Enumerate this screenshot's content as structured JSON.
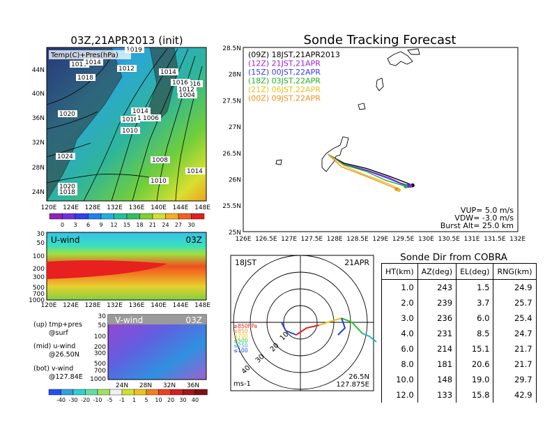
{
  "left": {
    "title": "03Z,21APR2013 (init)",
    "map_label": "Temp(C)+Pres(hPa)",
    "map_lat_labels": [
      "44N",
      "40N",
      "36N",
      "32N",
      "28N",
      "24N"
    ],
    "map_lon_labels": [
      "120E",
      "124E",
      "128E",
      "132E",
      "136E",
      "140E",
      "144E",
      "148E"
    ],
    "isobar_labels": [
      "1016",
      "1014",
      "1012",
      "1014",
      "1016",
      "1012",
      "1004",
      "1018",
      "1016",
      "1020",
      "1014",
      "1008",
      "1016",
      "1010",
      "1006",
      "1008",
      "1014",
      "1024",
      "1010",
      "1020",
      "1018",
      "1019"
    ],
    "temp_colorbar": [
      "0",
      "3",
      "6",
      "9",
      "12",
      "15",
      "18",
      "21",
      "24",
      "27",
      "30"
    ],
    "uwind_label": "U-wind",
    "uwind_time": "03Z",
    "vwind_label": "V-wind",
    "vwind_time": "03Z",
    "pressure_ticks": [
      "30",
      "50",
      "100",
      "200",
      "300",
      "500",
      "700",
      "1000"
    ],
    "vwind_pressure_ticks": [
      "30",
      "50",
      "100",
      "200",
      "300",
      "500",
      "700",
      "1000"
    ],
    "uwind_lon_labels": [
      "120E",
      "124E",
      "128E",
      "132E",
      "136E",
      "140E",
      "144E",
      "148E"
    ],
    "vwind_lat_labels": [
      "24N",
      "28N",
      "32N",
      "36N"
    ],
    "notes": [
      "(up) tmp+pres",
      "@surf",
      "(mid) u-wind",
      "@26.50N",
      "(bot) v-wind",
      "@127.84E"
    ],
    "wind_colorbar": [
      "-40",
      "-30",
      "-20",
      "-10",
      "-5",
      "-1",
      "1",
      "5",
      "10",
      "20",
      "30",
      "40"
    ]
  },
  "tracking": {
    "title": "Sonde Tracking Forecast",
    "legend": [
      {
        "text": "(09Z) 18JST,21APR2013",
        "color": "#000000"
      },
      {
        "text": "(12Z) 21JST,21APR",
        "color": "#a020d0"
      },
      {
        "text": "(15Z) 00JST,22APR",
        "color": "#3a3af0"
      },
      {
        "text": "(18Z) 03JST,22APR",
        "color": "#20b020"
      },
      {
        "text": "(21Z) 06JST,22APR",
        "color": "#e8c020"
      },
      {
        "text": "(00Z) 09JST,22APR",
        "color": "#f09020"
      }
    ],
    "lat_labels": [
      "28.5N",
      "28N",
      "27.5N",
      "27N",
      "26.5N",
      "26N",
      "25.5N",
      "25N"
    ],
    "lon_labels": [
      "126E",
      "126.5E",
      "127E",
      "127.5E",
      "128E",
      "128.5E",
      "129E",
      "129.5E",
      "130E",
      "130.5E",
      "131E",
      "131.5E",
      "132E"
    ],
    "params": [
      "VUP=  5.0 m/s",
      "VDW= -3.0 m/s",
      "Burst Alt= 25.0 km"
    ]
  },
  "polar": {
    "time_left": "18JST",
    "date_right": "21APR",
    "ring_labels": [
      "10",
      "20",
      "30",
      "40"
    ],
    "pressure_legend": [
      {
        "text": "≥850hPa",
        "color": "#e02020"
      },
      {
        "text": "≤850",
        "color": "#f09020"
      },
      {
        "text": "≤700",
        "color": "#e8c020"
      },
      {
        "text": "≤500",
        "color": "#20c020"
      },
      {
        "text": "≤250",
        "color": "#20b0d0"
      },
      {
        "text": "≤100",
        "color": "#2040e0"
      }
    ],
    "units": "ms-1",
    "lat": "26.5N",
    "lon": "127.875E"
  },
  "table": {
    "title": "Sonde Dir from COBRA",
    "headers": [
      "HT(km)",
      "AZ(deg)",
      "EL(deg)",
      "RNG(km)"
    ],
    "rows": [
      [
        "1.0",
        "243",
        "1.5",
        "24.9"
      ],
      [
        "2.0",
        "239",
        "3.7",
        "25.7"
      ],
      [
        "3.0",
        "236",
        "6.0",
        "25.4"
      ],
      [
        "4.0",
        "231",
        "8.5",
        "24.7"
      ],
      [
        "6.0",
        "214",
        "15.1",
        "21.7"
      ],
      [
        "8.0",
        "181",
        "20.6",
        "21.7"
      ],
      [
        "10.0",
        "148",
        "19.0",
        "29.7"
      ],
      [
        "12.0",
        "133",
        "15.8",
        "42.9"
      ]
    ]
  },
  "chart_data": [
    {
      "type": "line",
      "title": "Sonde Tracking Forecast",
      "xlim": [
        126,
        132
      ],
      "ylim": [
        25,
        28.5
      ],
      "series": [
        {
          "name": "(09Z) 18JST,21APR2013",
          "x": [
            127.85,
            128.2,
            128.7,
            129.2,
            129.5,
            129.7
          ],
          "y": [
            26.47,
            26.3,
            26.2,
            26.05,
            25.95,
            25.88
          ]
        },
        {
          "name": "(12Z) 21JST,21APR",
          "x": [
            127.85,
            128.2,
            128.7,
            129.2,
            129.45,
            129.65
          ],
          "y": [
            26.47,
            26.28,
            26.17,
            26.02,
            25.92,
            25.87
          ]
        },
        {
          "name": "(15Z) 00JST,22APR",
          "x": [
            127.85,
            128.2,
            128.7,
            129.2,
            129.45,
            129.6
          ],
          "y": [
            26.47,
            26.28,
            26.16,
            26.0,
            25.91,
            25.87
          ]
        },
        {
          "name": "(18Z) 03JST,22APR",
          "x": [
            127.85,
            128.2,
            128.7,
            129.1,
            129.4,
            129.55
          ],
          "y": [
            26.47,
            26.27,
            26.14,
            25.98,
            25.9,
            25.86
          ]
        },
        {
          "name": "(21Z) 06JST,22APR",
          "x": [
            127.85,
            128.2,
            128.6,
            129.0,
            129.3,
            129.4
          ],
          "y": [
            26.47,
            26.25,
            26.1,
            25.97,
            25.86,
            25.79
          ]
        },
        {
          "name": "(00Z) 09JST,22APR",
          "x": [
            127.85,
            128.15,
            128.6,
            129.0,
            129.25,
            129.35
          ],
          "y": [
            26.47,
            26.23,
            26.08,
            25.94,
            25.85,
            25.81
          ]
        }
      ]
    },
    {
      "type": "table",
      "title": "Sonde Dir from COBRA",
      "columns": [
        "HT(km)",
        "AZ(deg)",
        "EL(deg)",
        "RNG(km)"
      ],
      "rows": [
        [
          1.0,
          243,
          1.5,
          24.9
        ],
        [
          2.0,
          239,
          3.7,
          25.7
        ],
        [
          3.0,
          236,
          6.0,
          25.4
        ],
        [
          4.0,
          231,
          8.5,
          24.7
        ],
        [
          6.0,
          214,
          15.1,
          21.7
        ],
        [
          8.0,
          181,
          20.6,
          21.7
        ],
        [
          10.0,
          148,
          19.0,
          29.7
        ],
        [
          12.0,
          133,
          15.8,
          42.9
        ]
      ]
    }
  ]
}
